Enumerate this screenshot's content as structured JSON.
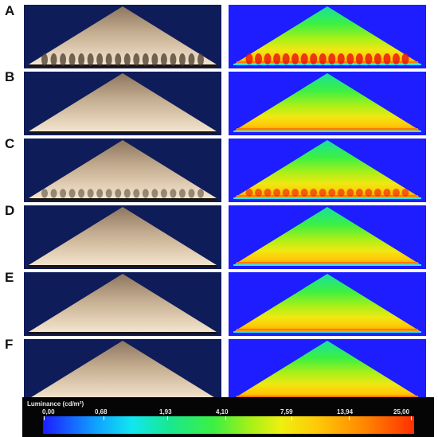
{
  "rows": [
    {
      "label": "A"
    },
    {
      "label": "B"
    },
    {
      "label": "C"
    },
    {
      "label": "D"
    },
    {
      "label": "E"
    },
    {
      "label": "F"
    }
  ],
  "legend": {
    "title": "Luminance (cd/m²)",
    "ticks": [
      "0,00",
      "0,68",
      "1,93",
      "4,10",
      "7,59",
      "13,94",
      "25,00"
    ]
  },
  "colors": {
    "background_dark": "#0e1c5a",
    "background_false_color": "#1d1dff",
    "ramp_surface_light": "#d8c3a6",
    "ramp_surface_dark": "#7a6450"
  }
}
